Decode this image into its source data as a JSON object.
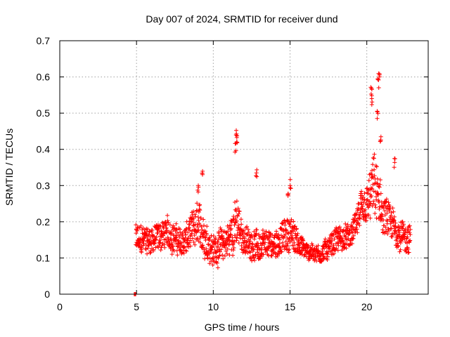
{
  "chart_data": {
    "type": "scatter",
    "title": "Day 007 of 2024, SRMTID for receiver dund",
    "xlabel": "GPS time / hours",
    "ylabel": "SRMTID / TECUs",
    "xlim": [
      0,
      24
    ],
    "ylim": [
      0,
      0.7
    ],
    "xticks": [
      0,
      5,
      10,
      15,
      20
    ],
    "xtick_labels": [
      "0",
      "5",
      "10",
      "15",
      "20"
    ],
    "yticks": [
      0,
      0.1,
      0.2,
      0.3,
      0.4,
      0.5,
      0.6,
      0.7
    ],
    "ytick_labels": [
      "0",
      "0.1",
      "0.2",
      "0.3",
      "0.4",
      "0.5",
      "0.6",
      "0.7"
    ],
    "grid": true,
    "marker": "+",
    "color": "#ff0000",
    "series": [
      {
        "name": "dund",
        "color": "#ff0000",
        "zero_points": [
          [
            4.85,
            0
          ],
          [
            4.9,
            0
          ],
          [
            4.95,
            0
          ]
        ],
        "envelope": {
          "x_start": 4.95,
          "x_end": 22.85,
          "description_points_hours_baseline_spread": [
            [
              5.0,
              0.15,
              0.07
            ],
            [
              6.0,
              0.15,
              0.06
            ],
            [
              7.0,
              0.17,
              0.07
            ],
            [
              8.0,
              0.14,
              0.06
            ],
            [
              9.0,
              0.19,
              0.1
            ],
            [
              10.0,
              0.12,
              0.07
            ],
            [
              11.0,
              0.15,
              0.08
            ],
            [
              11.5,
              0.2,
              0.12
            ],
            [
              12.0,
              0.15,
              0.06
            ],
            [
              13.0,
              0.13,
              0.07
            ],
            [
              14.0,
              0.14,
              0.06
            ],
            [
              15.0,
              0.17,
              0.08
            ],
            [
              16.0,
              0.12,
              0.04
            ],
            [
              17.0,
              0.11,
              0.04
            ],
            [
              18.0,
              0.15,
              0.06
            ],
            [
              19.0,
              0.16,
              0.05
            ],
            [
              19.5,
              0.22,
              0.08
            ],
            [
              20.0,
              0.24,
              0.09
            ],
            [
              20.5,
              0.3,
              0.15
            ],
            [
              21.0,
              0.22,
              0.1
            ],
            [
              22.0,
              0.17,
              0.07
            ],
            [
              22.8,
              0.15,
              0.07
            ]
          ],
          "peaks": [
            [
              9.0,
              0.31
            ],
            [
              9.3,
              0.34
            ],
            [
              11.5,
              0.46
            ],
            [
              11.55,
              0.44
            ],
            [
              11.45,
              0.42
            ],
            [
              12.8,
              0.35
            ],
            [
              14.9,
              0.3
            ],
            [
              15.05,
              0.32
            ],
            [
              20.3,
              0.58
            ],
            [
              20.35,
              0.55
            ],
            [
              20.8,
              0.61
            ],
            [
              20.75,
              0.6
            ],
            [
              20.7,
              0.51
            ],
            [
              21.8,
              0.38
            ],
            [
              20.9,
              0.45
            ]
          ]
        }
      }
    ]
  }
}
